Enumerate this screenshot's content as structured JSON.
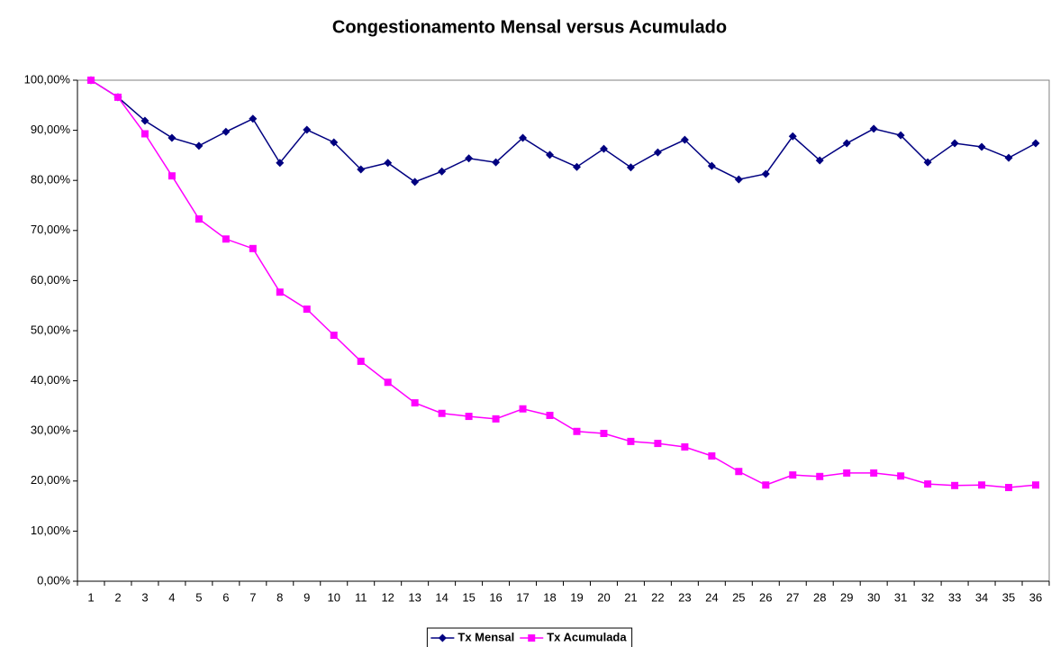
{
  "chart_data": {
    "type": "line",
    "title": "Congestionamento Mensal versus Acumulado",
    "categories": [
      "1",
      "2",
      "3",
      "4",
      "5",
      "6",
      "7",
      "8",
      "9",
      "10",
      "11",
      "12",
      "13",
      "14",
      "15",
      "16",
      "17",
      "18",
      "19",
      "20",
      "21",
      "22",
      "23",
      "24",
      "25",
      "26",
      "27",
      "28",
      "29",
      "30",
      "31",
      "32",
      "33",
      "34",
      "35",
      "36"
    ],
    "series": [
      {
        "name": "Tx Mensal",
        "color": "#000080",
        "marker": "diamond",
        "values": [
          100,
          96.6,
          91.9,
          88.5,
          86.9,
          89.7,
          92.3,
          83.5,
          90.1,
          87.6,
          82.2,
          83.5,
          79.7,
          81.8,
          84.4,
          83.6,
          88.5,
          85.1,
          82.7,
          86.3,
          82.6,
          85.6,
          88.1,
          82.9,
          80.2,
          81.3,
          88.8,
          84.0,
          87.4,
          90.3,
          89.0,
          83.6,
          87.4,
          86.7,
          84.5,
          87.4
        ]
      },
      {
        "name": "Tx Acumulada",
        "color": "#ff00ff",
        "marker": "square",
        "values": [
          100,
          96.6,
          89.3,
          80.9,
          72.3,
          68.3,
          66.4,
          57.7,
          54.3,
          49.1,
          43.9,
          39.7,
          35.6,
          33.5,
          32.9,
          32.4,
          34.4,
          33.1,
          29.9,
          29.5,
          27.9,
          27.5,
          26.8,
          25.0,
          21.9,
          19.2,
          21.2,
          20.9,
          21.6,
          21.6,
          21.0,
          19.4,
          19.1,
          19.2,
          18.7,
          19.2
        ]
      }
    ],
    "ylim": [
      0,
      100
    ],
    "yticks": [
      {
        "value": 0,
        "label": "0,00%"
      },
      {
        "value": 10,
        "label": "10,00%"
      },
      {
        "value": 20,
        "label": "20,00%"
      },
      {
        "value": 30,
        "label": "30,00%"
      },
      {
        "value": 40,
        "label": "40,00%"
      },
      {
        "value": 50,
        "label": "50,00%"
      },
      {
        "value": 60,
        "label": "60,00%"
      },
      {
        "value": 70,
        "label": "70,00%"
      },
      {
        "value": 80,
        "label": "80,00%"
      },
      {
        "value": 90,
        "label": "90,00%"
      },
      {
        "value": 100,
        "label": "100,00%"
      }
    ],
    "grid": false,
    "legend": "bottom"
  }
}
